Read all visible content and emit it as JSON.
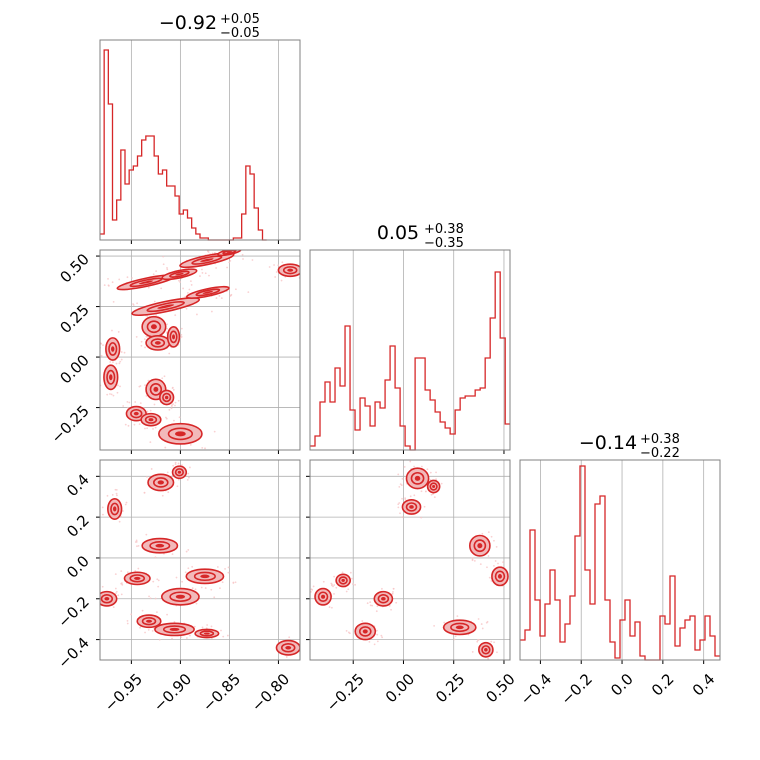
{
  "colors": {
    "line": "#d62728",
    "fill_dark": "#d62728",
    "fill_light": "#f2b9ba",
    "points": "#f7c6c7",
    "grid": "#b0b0b0",
    "frame": "#808080"
  },
  "chart_data": [
    {
      "type": "histogram",
      "panel": "diag-0",
      "title": {
        "value": "−0.92",
        "sup": "+0.05",
        "sub": "−0.05"
      },
      "xlim": [
        -0.982,
        -0.778
      ],
      "xticks": [
        -0.95,
        -0.9,
        -0.85,
        -0.8
      ],
      "xtick_labels": [],
      "bin_edges_start": -0.982,
      "bin_width": 0.00425,
      "values": [
        0.03,
        0.95,
        0.68,
        0.1,
        0.2,
        0.45,
        0.28,
        0.35,
        0.37,
        0.42,
        0.5,
        0.52,
        0.52,
        0.42,
        0.33,
        0.35,
        0.27,
        0.27,
        0.22,
        0.13,
        0.15,
        0.11,
        0.06,
        0.03,
        0.01,
        0.01,
        0.0,
        0.0,
        0.0,
        0.0,
        0.0,
        0.0,
        0.01,
        0.01,
        0.13,
        0.37,
        0.33,
        0.16,
        0.05,
        0.0
      ],
      "ymax": 1.0
    },
    {
      "type": "histogram",
      "panel": "diag-1",
      "title": {
        "value": "0.05",
        "sup": "+0.38",
        "sub": "−0.35"
      },
      "xlim": [
        -0.465,
        0.53
      ],
      "xticks": [
        -0.25,
        0.0,
        0.25,
        0.5
      ],
      "xtick_labels": [],
      "bin_edges_start": -0.465,
      "bin_width": 0.0249,
      "values": [
        0.02,
        0.07,
        0.24,
        0.34,
        0.24,
        0.41,
        0.32,
        0.62,
        0.2,
        0.1,
        0.26,
        0.22,
        0.12,
        0.24,
        0.21,
        0.35,
        0.52,
        0.31,
        0.12,
        0.02,
        0.0,
        0.46,
        0.46,
        0.3,
        0.25,
        0.19,
        0.14,
        0.11,
        0.08,
        0.2,
        0.26,
        0.27,
        0.27,
        0.3,
        0.31,
        0.46,
        0.66,
        0.89,
        0.56,
        0.13
      ],
      "ymax": 1.0
    },
    {
      "type": "histogram",
      "panel": "diag-2",
      "title": {
        "value": "−0.14",
        "sup": "+0.38",
        "sub": "−0.22"
      },
      "xlim": [
        -0.5,
        0.48
      ],
      "xticks": [
        -0.4,
        -0.2,
        0.0,
        0.2,
        0.4
      ],
      "xtick_labels": [
        "−0.4",
        "−0.2",
        "0.0",
        "0.2",
        "0.4"
      ],
      "bin_edges_start": -0.5,
      "bin_width": 0.0245,
      "values": [
        0.1,
        0.15,
        0.65,
        0.3,
        0.12,
        0.28,
        0.45,
        0.3,
        0.09,
        0.18,
        0.32,
        0.62,
        0.97,
        0.45,
        0.28,
        0.78,
        0.82,
        0.3,
        0.09,
        0.01,
        0.2,
        0.3,
        0.12,
        0.19,
        0.02,
        0.0,
        0.0,
        0.0,
        0.22,
        0.18,
        0.42,
        0.07,
        0.16,
        0.2,
        0.22,
        0.05,
        0.1,
        0.22,
        0.12,
        0.02
      ],
      "ymax": 1.0
    },
    {
      "type": "scatter-contour",
      "panel": "r1c0",
      "xlim": [
        -0.982,
        -0.778
      ],
      "ylim": [
        -0.46,
        0.53
      ],
      "xticks": [
        -0.95,
        -0.9,
        -0.85,
        -0.8
      ],
      "yticks": [
        -0.25,
        0.0,
        0.25,
        0.5
      ],
      "xtick_labels": [],
      "ytick_labels": [
        "−0.25",
        "0.00",
        "0.25",
        "0.50"
      ],
      "blobs": [
        {
          "x": -0.935,
          "y": 0.37,
          "rx": 0.03,
          "ry": 0.02,
          "angle": -12
        },
        {
          "x": -0.901,
          "y": 0.41,
          "rx": 0.018,
          "ry": 0.018,
          "angle": -12
        },
        {
          "x": -0.873,
          "y": 0.48,
          "rx": 0.028,
          "ry": 0.022,
          "angle": -12
        },
        {
          "x": -0.85,
          "y": 0.52,
          "rx": 0.012,
          "ry": 0.012,
          "angle": -12
        },
        {
          "x": -0.788,
          "y": 0.43,
          "rx": 0.012,
          "ry": 0.03,
          "angle": 0
        },
        {
          "x": -0.915,
          "y": 0.25,
          "rx": 0.035,
          "ry": 0.025,
          "angle": -12
        },
        {
          "x": -0.872,
          "y": 0.32,
          "rx": 0.022,
          "ry": 0.018,
          "angle": -12
        },
        {
          "x": -0.927,
          "y": 0.15,
          "rx": 0.012,
          "ry": 0.05,
          "angle": 0
        },
        {
          "x": -0.923,
          "y": 0.07,
          "rx": 0.012,
          "ry": 0.035,
          "angle": 0
        },
        {
          "x": -0.907,
          "y": 0.1,
          "rx": 0.006,
          "ry": 0.05,
          "angle": 0
        },
        {
          "x": -0.969,
          "y": 0.04,
          "rx": 0.007,
          "ry": 0.055,
          "angle": 0
        },
        {
          "x": -0.971,
          "y": -0.1,
          "rx": 0.007,
          "ry": 0.06,
          "angle": 0
        },
        {
          "x": -0.925,
          "y": -0.16,
          "rx": 0.01,
          "ry": 0.05,
          "angle": 0
        },
        {
          "x": -0.914,
          "y": -0.2,
          "rx": 0.007,
          "ry": 0.035,
          "angle": 0
        },
        {
          "x": -0.945,
          "y": -0.28,
          "rx": 0.01,
          "ry": 0.035,
          "angle": 0
        },
        {
          "x": -0.93,
          "y": -0.31,
          "rx": 0.01,
          "ry": 0.03,
          "angle": 0
        },
        {
          "x": -0.9,
          "y": -0.38,
          "rx": 0.022,
          "ry": 0.05,
          "angle": 0
        }
      ]
    },
    {
      "type": "scatter-contour",
      "panel": "r2c0",
      "xlim": [
        -0.982,
        -0.778
      ],
      "ylim": [
        -0.5,
        0.48
      ],
      "xticks": [
        -0.95,
        -0.9,
        -0.85,
        -0.8
      ],
      "yticks": [
        -0.4,
        -0.2,
        0.0,
        0.2,
        0.4
      ],
      "xtick_labels": [
        "−0.95",
        "−0.90",
        "−0.85",
        "−0.80"
      ],
      "ytick_labels": [
        "−0.4",
        "−0.2",
        "0.0",
        "0.2",
        "0.4"
      ],
      "blobs": [
        {
          "x": -0.967,
          "y": 0.24,
          "rx": 0.007,
          "ry": 0.05,
          "angle": 0
        },
        {
          "x": -0.92,
          "y": 0.37,
          "rx": 0.013,
          "ry": 0.04,
          "angle": 0
        },
        {
          "x": -0.901,
          "y": 0.42,
          "rx": 0.007,
          "ry": 0.03,
          "angle": 0
        },
        {
          "x": -0.921,
          "y": 0.06,
          "rx": 0.018,
          "ry": 0.035,
          "angle": 0
        },
        {
          "x": -0.944,
          "y": -0.1,
          "rx": 0.013,
          "ry": 0.03,
          "angle": 0
        },
        {
          "x": -0.875,
          "y": -0.09,
          "rx": 0.019,
          "ry": 0.035,
          "angle": 0
        },
        {
          "x": -0.975,
          "y": -0.2,
          "rx": 0.01,
          "ry": 0.035,
          "angle": 0
        },
        {
          "x": -0.9,
          "y": -0.19,
          "rx": 0.019,
          "ry": 0.04,
          "angle": 0
        },
        {
          "x": -0.932,
          "y": -0.31,
          "rx": 0.012,
          "ry": 0.03,
          "angle": 0
        },
        {
          "x": -0.906,
          "y": -0.35,
          "rx": 0.02,
          "ry": 0.03,
          "angle": 0
        },
        {
          "x": -0.873,
          "y": -0.37,
          "rx": 0.012,
          "ry": 0.02,
          "angle": 0
        },
        {
          "x": -0.79,
          "y": -0.44,
          "rx": 0.012,
          "ry": 0.035,
          "angle": 0
        }
      ]
    },
    {
      "type": "scatter-contour",
      "panel": "r2c1",
      "xlim": [
        -0.465,
        0.53
      ],
      "ylim": [
        -0.5,
        0.48
      ],
      "xticks": [
        -0.25,
        0.0,
        0.25,
        0.5
      ],
      "yticks": [
        -0.4,
        -0.2,
        0.0,
        0.2,
        0.4
      ],
      "xtick_labels": [
        "−0.25",
        "0.00",
        "0.25",
        "0.50"
      ],
      "ytick_labels": [],
      "blobs": [
        {
          "x": 0.07,
          "y": 0.39,
          "rx": 0.055,
          "ry": 0.05,
          "angle": 0
        },
        {
          "x": 0.15,
          "y": 0.35,
          "rx": 0.03,
          "ry": 0.03,
          "angle": 0
        },
        {
          "x": 0.04,
          "y": 0.25,
          "rx": 0.045,
          "ry": 0.035,
          "angle": 0
        },
        {
          "x": 0.38,
          "y": 0.06,
          "rx": 0.05,
          "ry": 0.05,
          "angle": 0
        },
        {
          "x": 0.48,
          "y": -0.09,
          "rx": 0.04,
          "ry": 0.045,
          "angle": 0
        },
        {
          "x": -0.3,
          "y": -0.11,
          "rx": 0.035,
          "ry": 0.03,
          "angle": 0
        },
        {
          "x": -0.4,
          "y": -0.19,
          "rx": 0.04,
          "ry": 0.04,
          "angle": 0
        },
        {
          "x": -0.1,
          "y": -0.2,
          "rx": 0.045,
          "ry": 0.035,
          "angle": 0
        },
        {
          "x": -0.19,
          "y": -0.36,
          "rx": 0.05,
          "ry": 0.04,
          "angle": 0
        },
        {
          "x": 0.28,
          "y": -0.34,
          "rx": 0.08,
          "ry": 0.035,
          "angle": 0
        },
        {
          "x": 0.41,
          "y": -0.45,
          "rx": 0.035,
          "ry": 0.035,
          "angle": 0
        }
      ]
    }
  ]
}
